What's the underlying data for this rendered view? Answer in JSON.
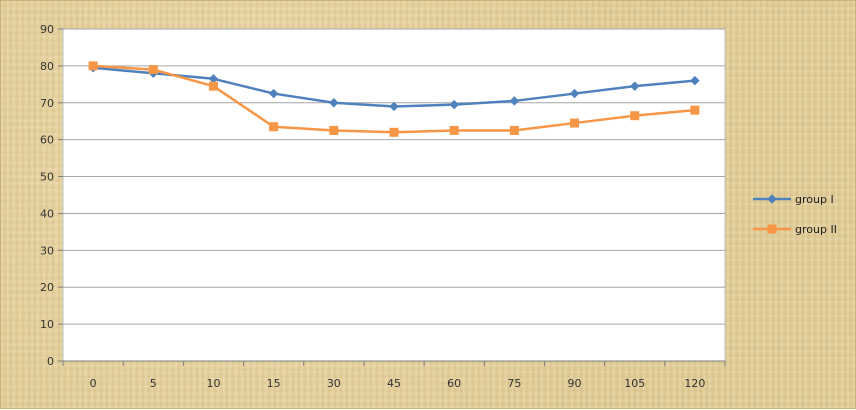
{
  "chart_data": {
    "type": "line",
    "title": "",
    "xlabel": "",
    "ylabel": "",
    "categories": [
      "0",
      "5",
      "10",
      "15",
      "30",
      "45",
      "60",
      "75",
      "90",
      "105",
      "120"
    ],
    "ylim": [
      0,
      90
    ],
    "yticks": [
      0,
      10,
      20,
      30,
      40,
      50,
      60,
      70,
      80,
      90
    ],
    "grid": true,
    "legend_position": "right",
    "series": [
      {
        "name": "group I",
        "color": "#4f81bd",
        "marker": "diamond",
        "values": [
          79.5,
          78,
          76.5,
          72.5,
          70,
          69,
          69.5,
          70.5,
          72.5,
          74.5,
          76
        ]
      },
      {
        "name": "group II",
        "color": "#f79646",
        "marker": "square",
        "values": [
          80,
          79,
          74.5,
          63.5,
          62.5,
          62,
          62.5,
          62.5,
          64.5,
          66.5,
          68
        ]
      }
    ]
  }
}
